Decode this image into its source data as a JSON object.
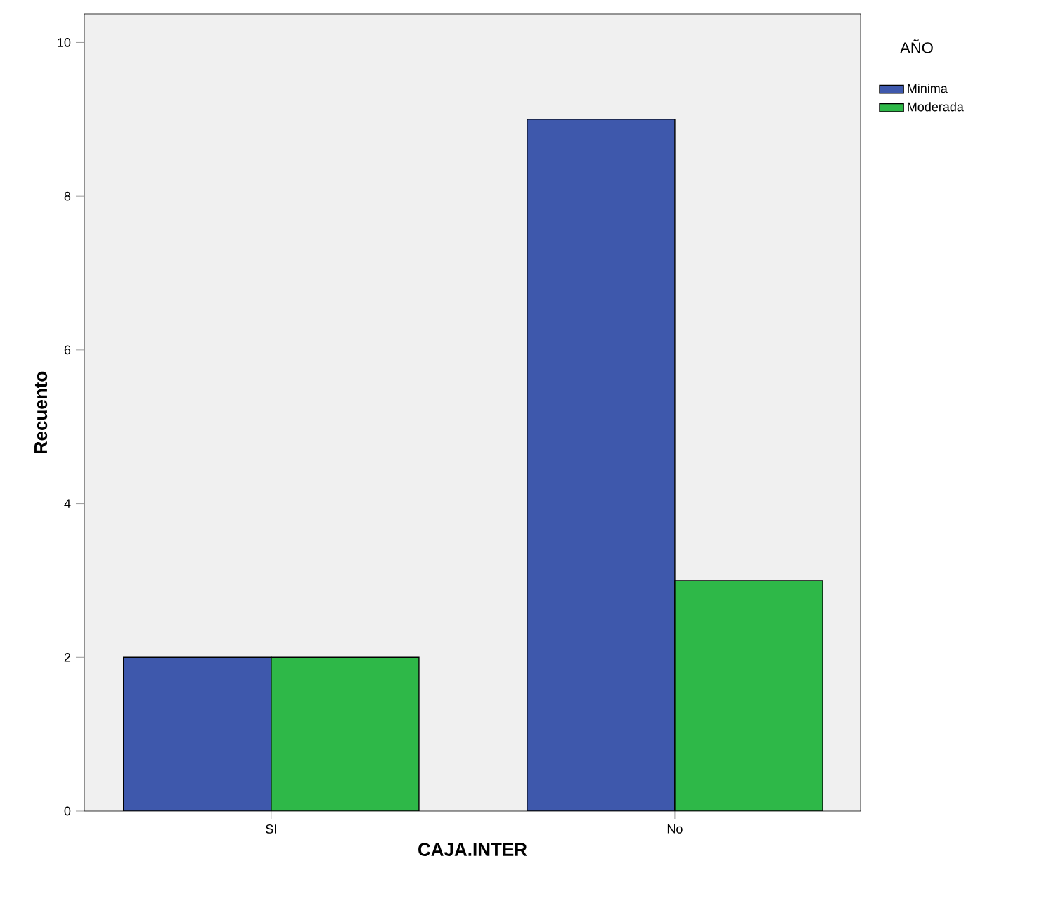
{
  "chart_data": {
    "type": "bar",
    "xlabel": "CAJA.INTER",
    "ylabel": "Recuento",
    "legend_title": "AÑO",
    "categories": [
      "SI",
      "No"
    ],
    "series": [
      {
        "name": "Minima",
        "color": "#3e58ac",
        "values": [
          2,
          9
        ]
      },
      {
        "name": "Moderada",
        "color": "#2eb848",
        "values": [
          2,
          3
        ]
      }
    ],
    "ylim": [
      0,
      10.37
    ],
    "yticks": [
      0,
      2,
      4,
      6,
      8,
      10
    ],
    "grid": false,
    "legend": "top right"
  }
}
